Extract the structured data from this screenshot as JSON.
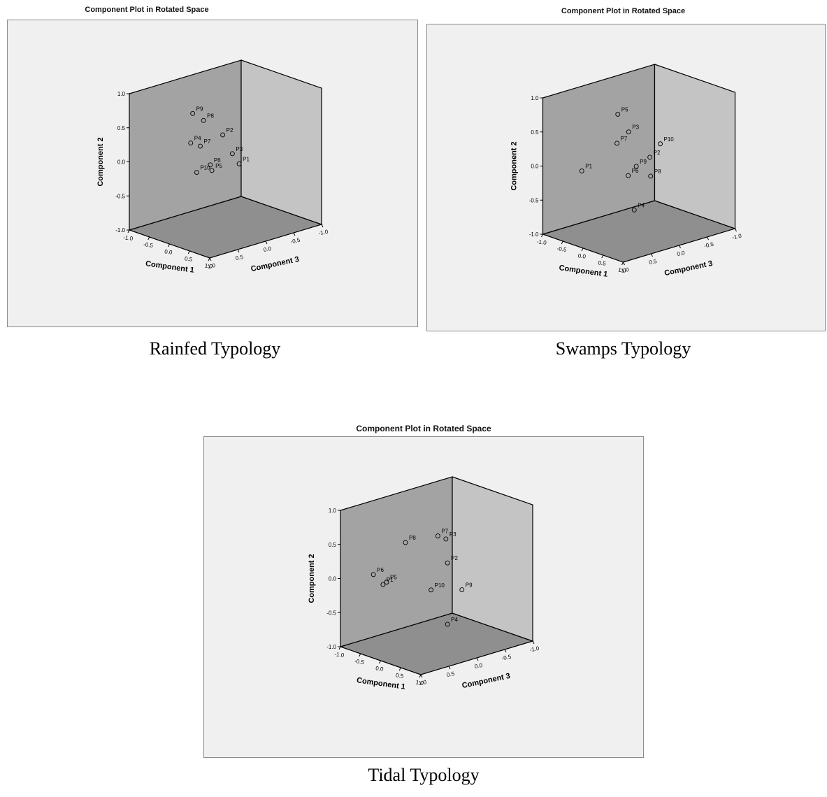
{
  "charts": [
    {
      "title": "Component Plot in Rotated Space",
      "caption": "Rainfed Typology",
      "chart_data": {
        "type": "scatter",
        "title": "Component Plot in Rotated Space",
        "axes": {
          "x_label": "Component 1",
          "y_label": "Component 2",
          "z_label": "Component 3"
        },
        "axis_range": [
          -1.0,
          1.0
        ],
        "ticks": [
          "-1.0",
          "-0.5",
          "0.0",
          "0.5",
          "1.0"
        ],
        "projection": "3d-box",
        "points": [
          {
            "label": "P1",
            "c1": 0.55,
            "c2": 0.08,
            "c3": 0.15
          },
          {
            "label": "P2",
            "c1": 0.35,
            "c2": 0.5,
            "c3": 0.3
          },
          {
            "label": "P3",
            "c1": 0.45,
            "c2": 0.22,
            "c3": 0.2
          },
          {
            "label": "P4",
            "c1": -0.1,
            "c2": 0.35,
            "c3": 0.55
          },
          {
            "label": "P5",
            "c1": 0.15,
            "c2": -0.05,
            "c3": 0.35
          },
          {
            "label": "P6",
            "c1": 0.18,
            "c2": 0.05,
            "c3": 0.4
          },
          {
            "label": "P7",
            "c1": 0.0,
            "c2": 0.3,
            "c3": 0.45
          },
          {
            "label": "P8",
            "c1": 0.15,
            "c2": 0.72,
            "c3": 0.5
          },
          {
            "label": "P9",
            "c1": 0.02,
            "c2": 0.82,
            "c3": 0.6
          },
          {
            "label": "P10",
            "c1": 0.05,
            "c2": -0.05,
            "c3": 0.55
          }
        ]
      }
    },
    {
      "title": "Component Plot in Rotated Space",
      "caption": "Swamps Typology",
      "chart_data": {
        "type": "scatter",
        "title": "Component Plot in Rotated Space",
        "axes": {
          "x_label": "Component 1",
          "y_label": "Component 2",
          "z_label": "Component 3"
        },
        "axis_range": [
          -1.0,
          1.0
        ],
        "ticks": [
          "-1.0",
          "-0.5",
          "0.0",
          "0.5",
          "1.0"
        ],
        "projection": "3d-box",
        "points": [
          {
            "label": "P1",
            "c1": -0.1,
            "c2": 0.1,
            "c3": 0.95
          },
          {
            "label": "P2",
            "c1": 0.55,
            "c2": 0.25,
            "c3": 0.2
          },
          {
            "label": "P3",
            "c1": 0.3,
            "c2": 0.62,
            "c3": 0.4
          },
          {
            "label": "P4",
            "c1": 0.3,
            "c2": -0.55,
            "c3": 0.3
          },
          {
            "label": "P5",
            "c1": 0.1,
            "c2": 0.85,
            "c3": 0.45
          },
          {
            "label": "P6",
            "c1": 0.22,
            "c2": -0.05,
            "c3": 0.35
          },
          {
            "label": "P7",
            "c1": 0.08,
            "c2": 0.42,
            "c3": 0.45
          },
          {
            "label": "P8",
            "c1": 0.5,
            "c2": -0.05,
            "c3": 0.15
          },
          {
            "label": "P9",
            "c1": 0.35,
            "c2": 0.1,
            "c3": 0.3
          },
          {
            "label": "P10",
            "c1": 0.6,
            "c2": 0.42,
            "c3": 0.05
          }
        ]
      }
    },
    {
      "title": "Component Plot in Rotated Space",
      "caption": "Tidal Typology",
      "chart_data": {
        "type": "scatter",
        "title": "Component Plot in Rotated Space",
        "axes": {
          "x_label": "Component 1",
          "y_label": "Component 2",
          "z_label": "Component 3"
        },
        "axis_range": [
          -1.0,
          1.0
        ],
        "ticks": [
          "-1.0",
          "-0.5",
          "0.0",
          "0.5",
          "1.0"
        ],
        "projection": "3d-box",
        "points": [
          {
            "label": "P2",
            "c1": 0.55,
            "c2": 0.35,
            "c3": 0.2
          },
          {
            "label": "P3",
            "c1": 0.58,
            "c2": 0.72,
            "c3": 0.25
          },
          {
            "label": "P4",
            "c1": 0.55,
            "c2": -0.55,
            "c3": 0.2
          },
          {
            "label": "P5",
            "c1": -0.2,
            "c2": 0.05,
            "c3": 0.75
          },
          {
            "label": "P6",
            "c1": -0.25,
            "c2": 0.2,
            "c3": 0.95
          },
          {
            "label": "P7",
            "c1": 0.45,
            "c2": 0.75,
            "c3": 0.3
          },
          {
            "label": "P8",
            "c1": 0.2,
            "c2": 0.7,
            "c3": 0.7
          },
          {
            "label": "P9",
            "c1": 0.7,
            "c2": -0.05,
            "c3": 0.05
          },
          {
            "label": "P10",
            "c1": 0.35,
            "c2": -0.05,
            "c3": 0.35
          },
          {
            "label": "P1",
            "c1": -0.15,
            "c2": 0.05,
            "c3": 0.85
          }
        ]
      }
    }
  ]
}
